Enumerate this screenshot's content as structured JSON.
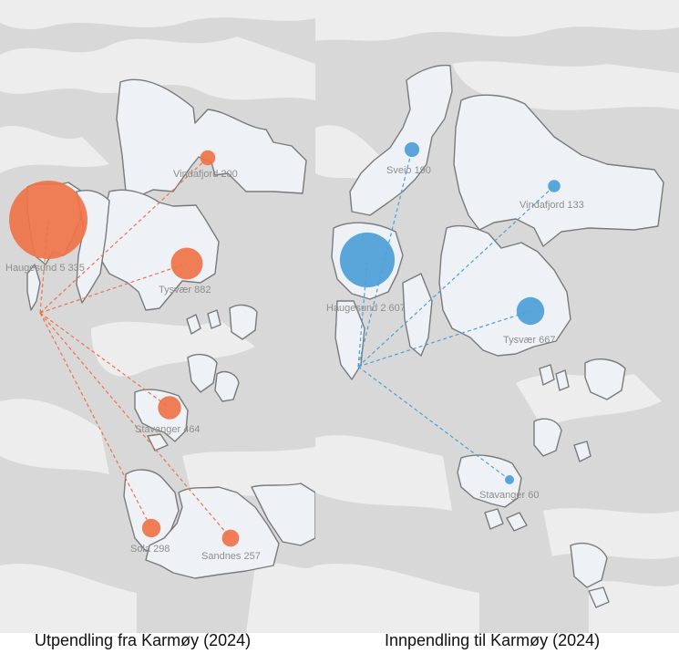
{
  "colors": {
    "background_land": "#d9d9d9",
    "region_fill": "#eef2f6",
    "region_stroke": "#7a7a7a",
    "out_accent": "#ef7348",
    "in_accent": "#4d9fd8"
  },
  "left_map": {
    "caption": "Utpendling fra Karmøy (2024)",
    "flows": [
      {
        "label": "Haugesund 5 335",
        "value": 5335
      },
      {
        "label": "Vindafjord 200",
        "value": 200
      },
      {
        "label": "Tysvær 882",
        "value": 882
      },
      {
        "label": "Stavanger 464",
        "value": 464
      },
      {
        "label": "Sola 298",
        "value": 298
      },
      {
        "label": "Sandnes 257",
        "value": 257
      }
    ]
  },
  "right_map": {
    "caption": "Innpendling til Karmøy (2024)",
    "flows": [
      {
        "label": "Haugesund 2 607",
        "value": 2607
      },
      {
        "label": "Sveio 190",
        "value": 190
      },
      {
        "label": "Vindafjord 133",
        "value": 133
      },
      {
        "label": "Tysvær 667",
        "value": 667
      },
      {
        "label": "Stavanger 60",
        "value": 60
      }
    ]
  }
}
